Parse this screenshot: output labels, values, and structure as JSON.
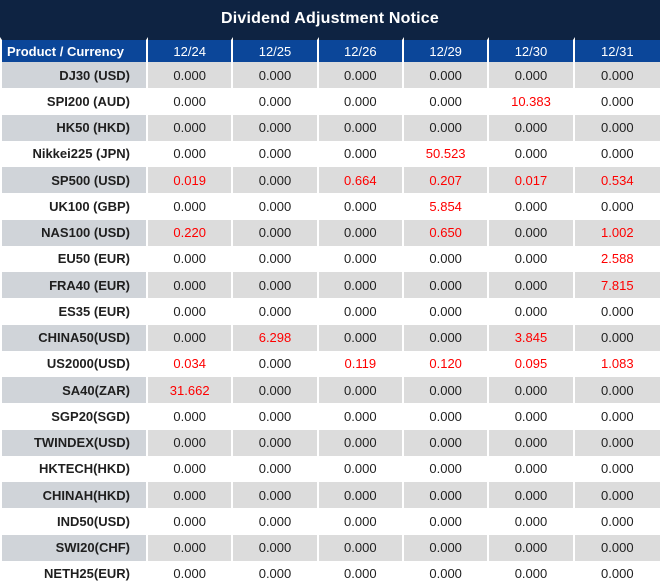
{
  "title": "Dividend Adjustment Notice",
  "colors": {
    "title_bg": "#0e2342",
    "header_bg": "#0b4699",
    "header_text": "#ffffff",
    "row_alt_bg": "#dcdcdc",
    "row_alt_label_bg": "#d0d4d9",
    "value_text": "#1f1f1f",
    "nonzero_text": "#fe0000"
  },
  "table": {
    "label_header": "Product / Currency",
    "date_headers": [
      "12/24",
      "12/25",
      "12/26",
      "12/29",
      "12/30",
      "12/31"
    ],
    "rows": [
      {
        "product": "DJ30 (USD)",
        "values": [
          "0.000",
          "0.000",
          "0.000",
          "0.000",
          "0.000",
          "0.000"
        ]
      },
      {
        "product": "SPI200 (AUD)",
        "values": [
          "0.000",
          "0.000",
          "0.000",
          "0.000",
          "10.383",
          "0.000"
        ]
      },
      {
        "product": "HK50 (HKD)",
        "values": [
          "0.000",
          "0.000",
          "0.000",
          "0.000",
          "0.000",
          "0.000"
        ]
      },
      {
        "product": "Nikkei225 (JPN)",
        "values": [
          "0.000",
          "0.000",
          "0.000",
          "50.523",
          "0.000",
          "0.000"
        ]
      },
      {
        "product": "SP500 (USD)",
        "values": [
          "0.019",
          "0.000",
          "0.664",
          "0.207",
          "0.017",
          "0.534"
        ]
      },
      {
        "product": "UK100 (GBP)",
        "values": [
          "0.000",
          "0.000",
          "0.000",
          "5.854",
          "0.000",
          "0.000"
        ]
      },
      {
        "product": "NAS100 (USD)",
        "values": [
          "0.220",
          "0.000",
          "0.000",
          "0.650",
          "0.000",
          "1.002"
        ]
      },
      {
        "product": "EU50 (EUR)",
        "values": [
          "0.000",
          "0.000",
          "0.000",
          "0.000",
          "0.000",
          "2.588"
        ]
      },
      {
        "product": "FRA40 (EUR)",
        "values": [
          "0.000",
          "0.000",
          "0.000",
          "0.000",
          "0.000",
          "7.815"
        ]
      },
      {
        "product": "ES35 (EUR)",
        "values": [
          "0.000",
          "0.000",
          "0.000",
          "0.000",
          "0.000",
          "0.000"
        ]
      },
      {
        "product": "CHINA50(USD)",
        "values": [
          "0.000",
          "6.298",
          "0.000",
          "0.000",
          "3.845",
          "0.000"
        ]
      },
      {
        "product": "US2000(USD)",
        "values": [
          "0.034",
          "0.000",
          "0.119",
          "0.120",
          "0.095",
          "1.083"
        ]
      },
      {
        "product": "SA40(ZAR)",
        "values": [
          "31.662",
          "0.000",
          "0.000",
          "0.000",
          "0.000",
          "0.000"
        ]
      },
      {
        "product": "SGP20(SGD)",
        "values": [
          "0.000",
          "0.000",
          "0.000",
          "0.000",
          "0.000",
          "0.000"
        ]
      },
      {
        "product": "TWINDEX(USD)",
        "values": [
          "0.000",
          "0.000",
          "0.000",
          "0.000",
          "0.000",
          "0.000"
        ]
      },
      {
        "product": "HKTECH(HKD)",
        "values": [
          "0.000",
          "0.000",
          "0.000",
          "0.000",
          "0.000",
          "0.000"
        ]
      },
      {
        "product": "CHINAH(HKD)",
        "values": [
          "0.000",
          "0.000",
          "0.000",
          "0.000",
          "0.000",
          "0.000"
        ]
      },
      {
        "product": "IND50(USD)",
        "values": [
          "0.000",
          "0.000",
          "0.000",
          "0.000",
          "0.000",
          "0.000"
        ]
      },
      {
        "product": "SWI20(CHF)",
        "values": [
          "0.000",
          "0.000",
          "0.000",
          "0.000",
          "0.000",
          "0.000"
        ]
      },
      {
        "product": "NETH25(EUR)",
        "values": [
          "0.000",
          "0.000",
          "0.000",
          "0.000",
          "0.000",
          "0.000"
        ]
      }
    ]
  }
}
